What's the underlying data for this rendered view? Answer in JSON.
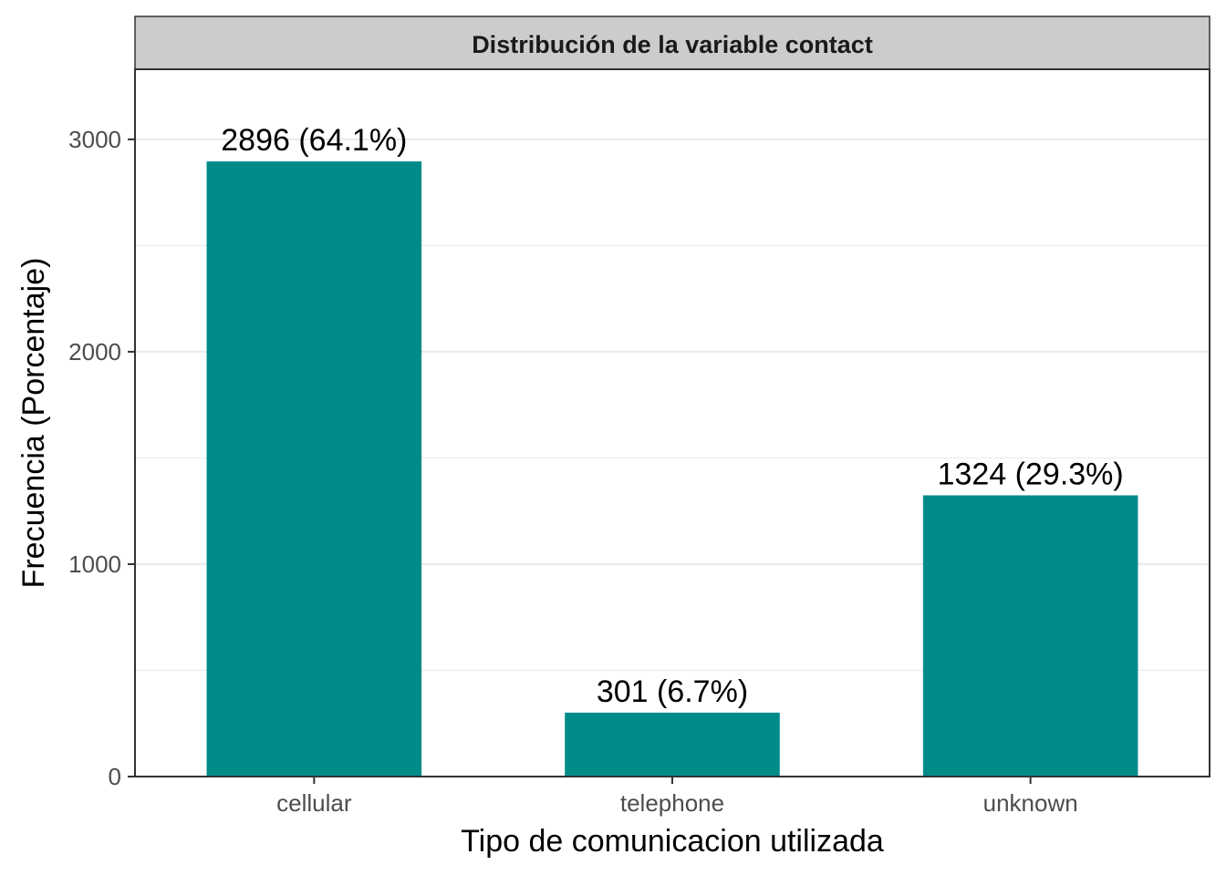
{
  "chart_data": {
    "type": "bar",
    "title": "Distribución de la variable contact",
    "xlabel": "Tipo de comunicacion utilizada",
    "ylabel": "Frecuencia (Porcentaje)",
    "categories": [
      "cellular",
      "telephone",
      "unknown"
    ],
    "values": [
      2896,
      301,
      1324
    ],
    "data_labels": [
      "2896 (64.1%)",
      "301 (6.7%)",
      "1324 (29.3%)"
    ],
    "ylim": [
      0,
      3330
    ],
    "yticks": [
      0,
      1000,
      2000,
      3000
    ],
    "ytick_labels": [
      "0",
      "1000",
      "2000",
      "3000"
    ],
    "grid": true,
    "legend": "none",
    "colors": {
      "bar": "#008B8B",
      "strip_bg": "#CCCCCC",
      "grid": "#EBEBEB",
      "panel_border": "#333333"
    }
  }
}
